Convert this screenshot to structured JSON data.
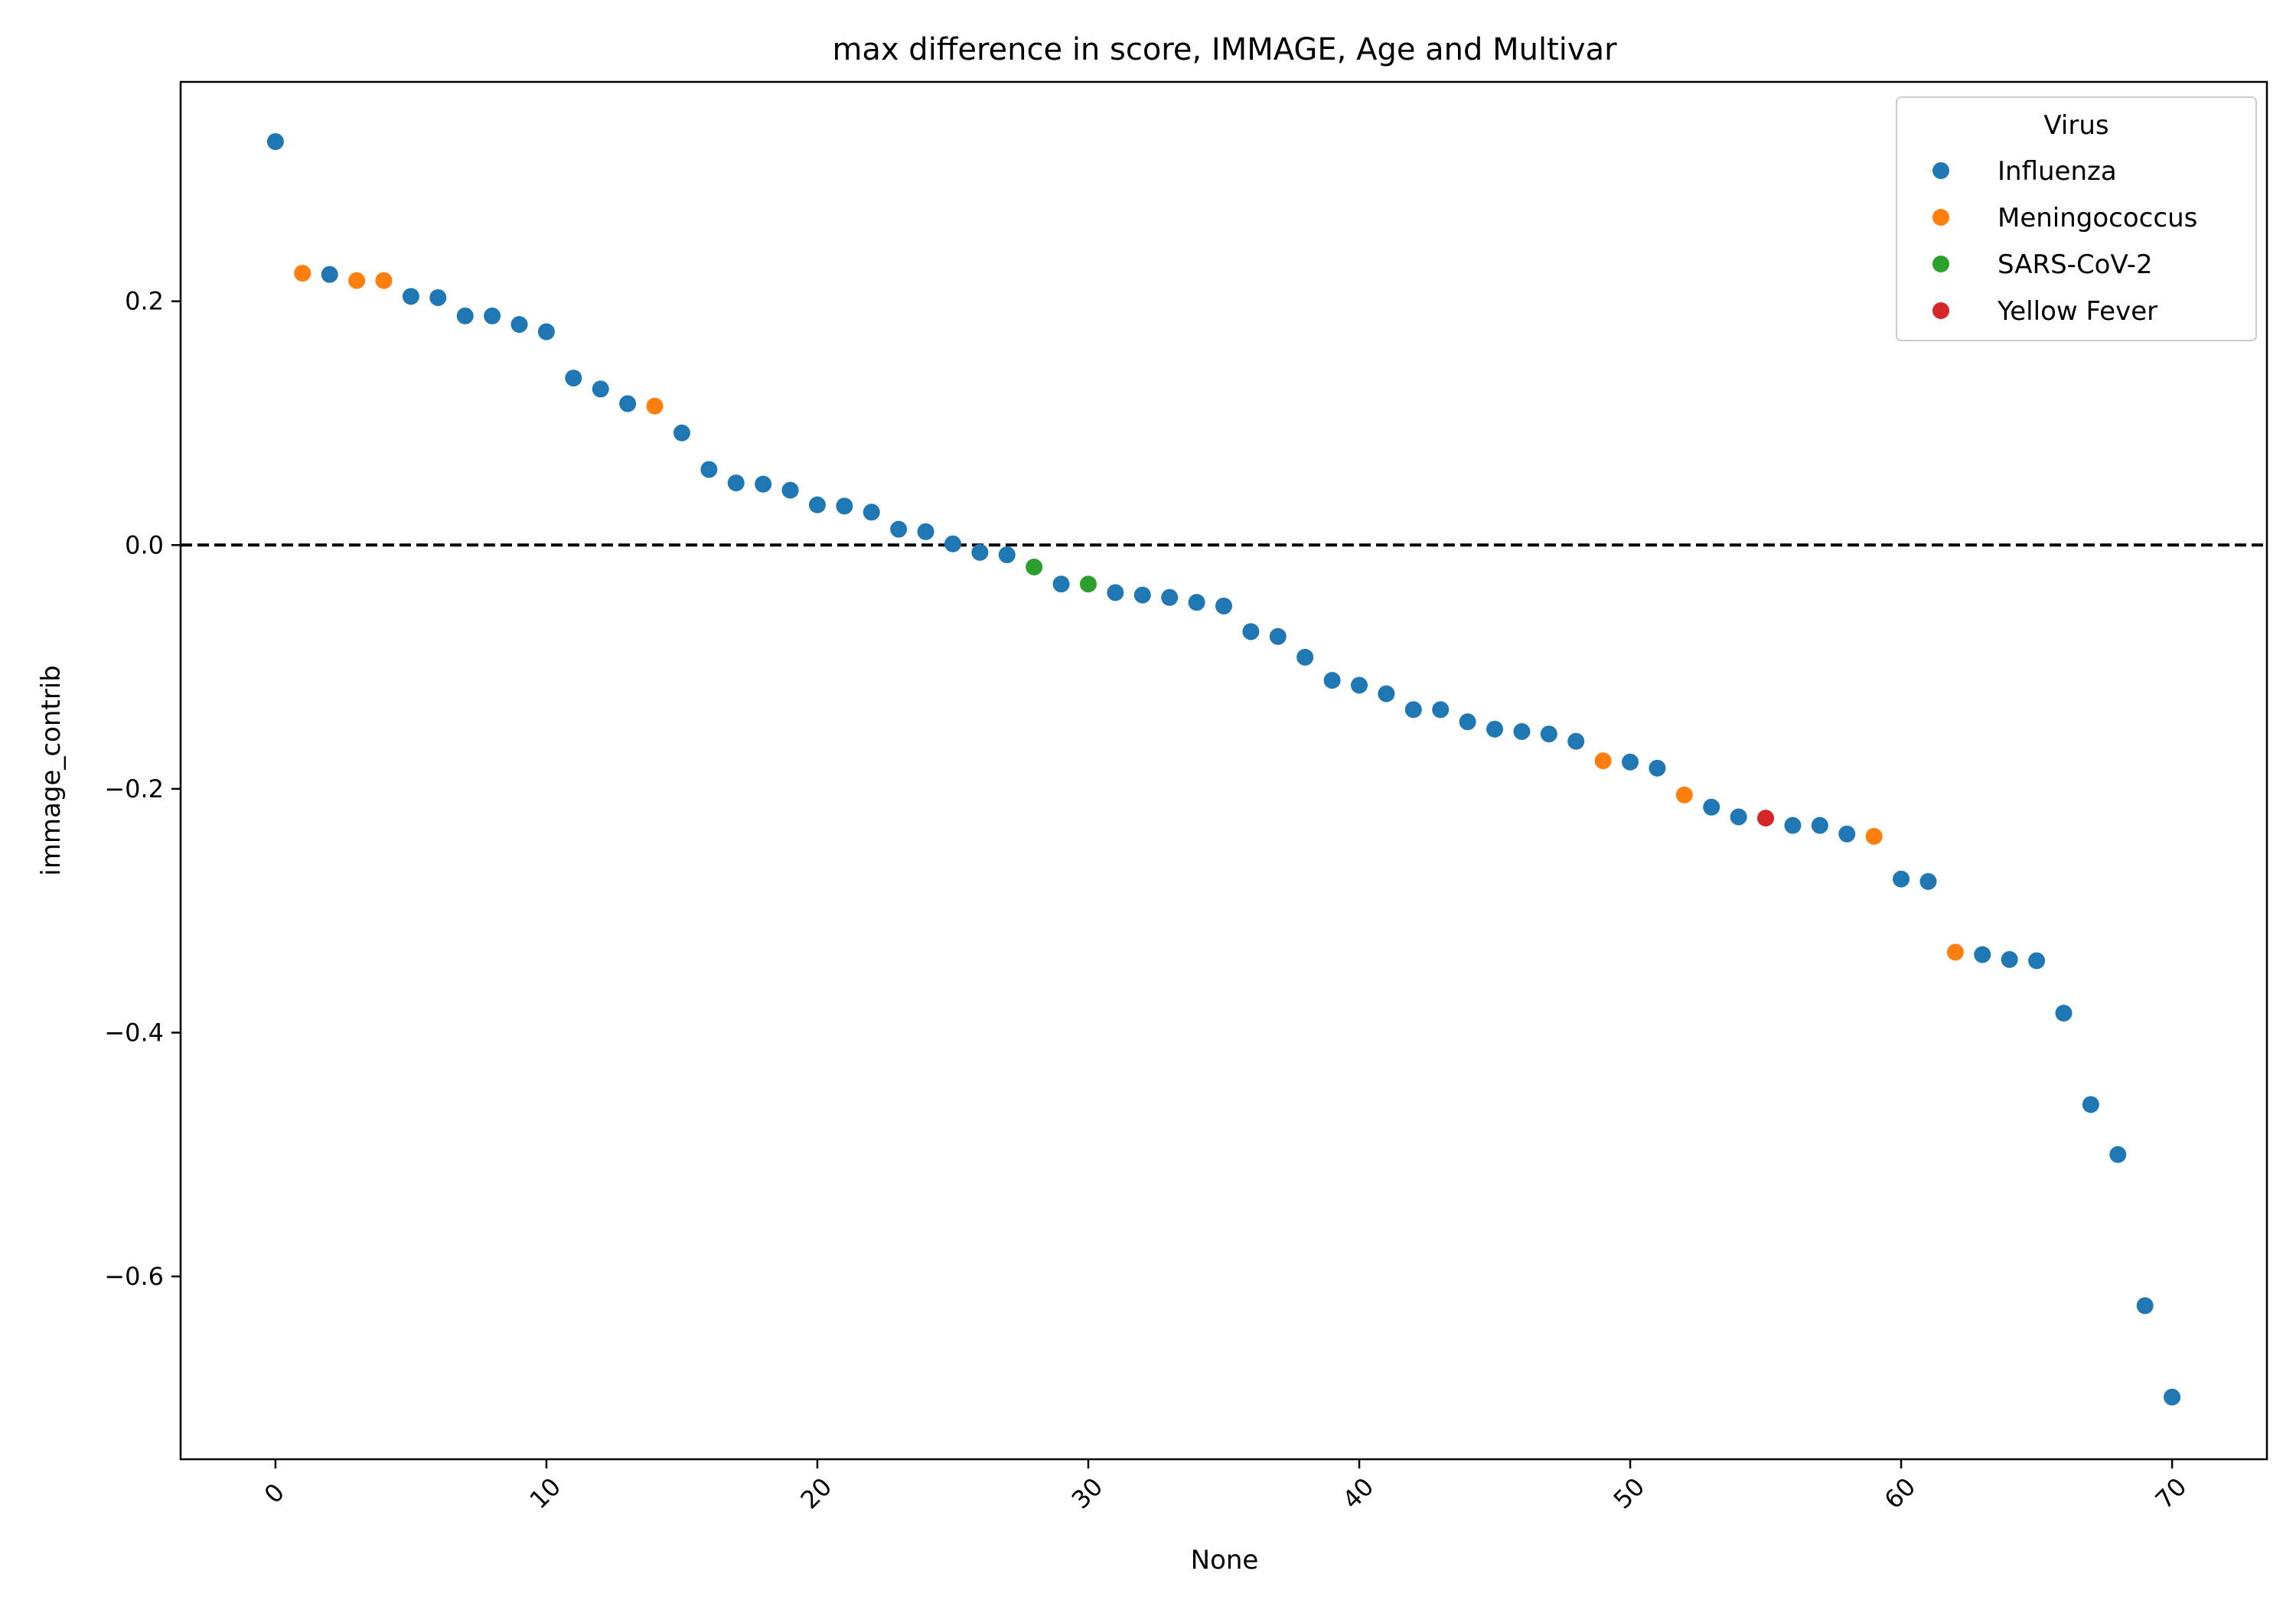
{
  "chart_data": {
    "type": "scatter",
    "title": "max difference in score, IMMAGE, Age and Multivar",
    "xlabel": "None",
    "ylabel": "immage_contrib",
    "xlim": [
      -3.5,
      73.5
    ],
    "ylim": [
      -0.75,
      0.38
    ],
    "xticks": [
      0,
      10,
      20,
      30,
      40,
      50,
      60,
      70
    ],
    "yticks": [
      -0.6,
      -0.4,
      -0.2,
      0.0,
      0.2
    ],
    "ytick_labels": [
      "−0.6",
      "−0.4",
      "−0.2",
      "0.0",
      "0.2"
    ],
    "xtick_rotation": -45,
    "reference_line": {
      "y": 0.0,
      "style": "dashed",
      "color": "#000000"
    },
    "grid": false,
    "legend": {
      "title": "Virus",
      "placement": "top-right",
      "entries": [
        "Influenza",
        "Meningococcus",
        "SARS-CoV-2",
        "Yellow Fever"
      ]
    },
    "series": [
      {
        "name": "Influenza",
        "color": "#1f77b4",
        "points": [
          [
            0,
            0.331
          ],
          [
            2,
            0.222
          ],
          [
            5,
            0.204
          ],
          [
            6,
            0.203
          ],
          [
            7,
            0.188
          ],
          [
            8,
            0.188
          ],
          [
            9,
            0.181
          ],
          [
            10,
            0.175
          ],
          [
            11,
            0.137
          ],
          [
            12,
            0.128
          ],
          [
            13,
            0.116
          ],
          [
            15,
            0.092
          ],
          [
            16,
            0.062
          ],
          [
            17,
            0.051
          ],
          [
            18,
            0.05
          ],
          [
            19,
            0.045
          ],
          [
            20,
            0.033
          ],
          [
            21,
            0.032
          ],
          [
            22,
            0.027
          ],
          [
            23,
            0.013
          ],
          [
            24,
            0.011
          ],
          [
            25,
            0.001
          ],
          [
            26,
            -0.006
          ],
          [
            27,
            -0.008
          ],
          [
            29,
            -0.032
          ],
          [
            31,
            -0.039
          ],
          [
            32,
            -0.041
          ],
          [
            33,
            -0.043
          ],
          [
            34,
            -0.047
          ],
          [
            35,
            -0.05
          ],
          [
            36,
            -0.071
          ],
          [
            37,
            -0.075
          ],
          [
            38,
            -0.092
          ],
          [
            39,
            -0.111
          ],
          [
            40,
            -0.115
          ],
          [
            41,
            -0.122
          ],
          [
            42,
            -0.135
          ],
          [
            43,
            -0.135
          ],
          [
            44,
            -0.145
          ],
          [
            45,
            -0.151
          ],
          [
            46,
            -0.153
          ],
          [
            47,
            -0.155
          ],
          [
            48,
            -0.161
          ],
          [
            50,
            -0.178
          ],
          [
            51,
            -0.183
          ],
          [
            53,
            -0.215
          ],
          [
            54,
            -0.223
          ],
          [
            56,
            -0.23
          ],
          [
            57,
            -0.23
          ],
          [
            58,
            -0.237
          ],
          [
            60,
            -0.274
          ],
          [
            61,
            -0.276
          ],
          [
            63,
            -0.336
          ],
          [
            64,
            -0.34
          ],
          [
            65,
            -0.341
          ],
          [
            66,
            -0.384
          ],
          [
            67,
            -0.459
          ],
          [
            68,
            -0.5
          ],
          [
            69,
            -0.624
          ],
          [
            70,
            -0.699
          ]
        ]
      },
      {
        "name": "Meningococcus",
        "color": "#ff7f0e",
        "points": [
          [
            1,
            0.223
          ],
          [
            3,
            0.217
          ],
          [
            4,
            0.217
          ],
          [
            14,
            0.114
          ],
          [
            49,
            -0.177
          ],
          [
            52,
            -0.205
          ],
          [
            59,
            -0.239
          ],
          [
            62,
            -0.334
          ]
        ]
      },
      {
        "name": "SARS-CoV-2",
        "color": "#2ca02c",
        "points": [
          [
            28,
            -0.018
          ],
          [
            30,
            -0.032
          ]
        ]
      },
      {
        "name": "Yellow Fever",
        "color": "#d62728",
        "points": [
          [
            55,
            -0.224
          ]
        ]
      }
    ]
  }
}
